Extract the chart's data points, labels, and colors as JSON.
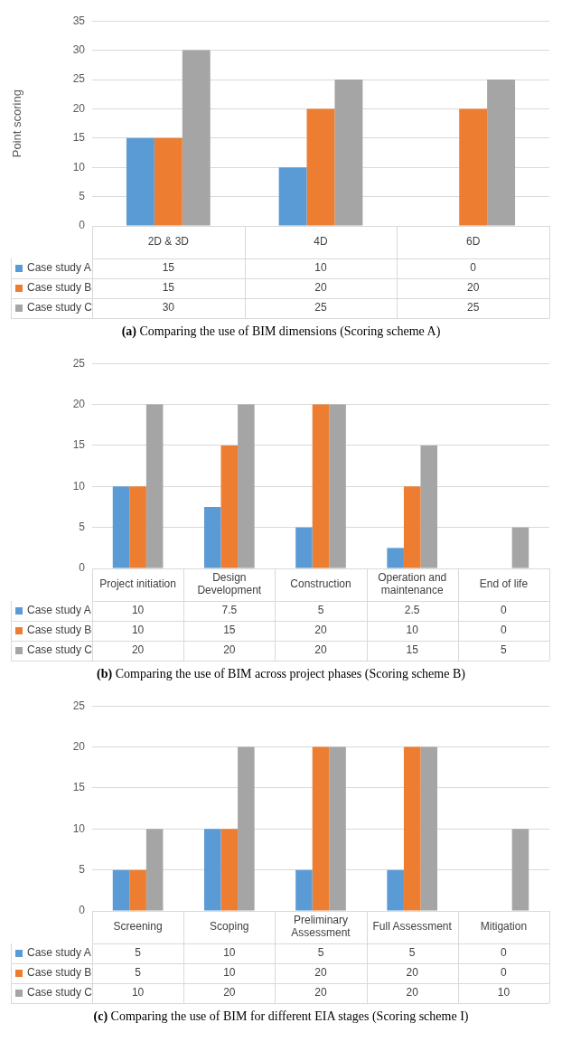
{
  "chart_data": [
    {
      "type": "bar",
      "title": "(a) Comparing the use of BIM dimensions (Scoring scheme A)",
      "ylabel": "Point scoring",
      "categories": [
        "2D & 3D",
        "4D",
        "6D"
      ],
      "series": [
        {
          "name": "Case study A",
          "color": "#5b9bd5",
          "values": [
            15,
            10,
            0
          ]
        },
        {
          "name": "Case study B",
          "color": "#ed7d31",
          "values": [
            15,
            20,
            20
          ]
        },
        {
          "name": "Case study C",
          "color": "#a5a5a5",
          "values": [
            30,
            25,
            25
          ]
        }
      ],
      "ylim": [
        0,
        35
      ],
      "yticks": [
        0,
        5,
        10,
        15,
        20,
        25,
        30,
        35
      ],
      "grid": "y",
      "data_labels": true,
      "legend": "bottom left"
    },
    {
      "type": "bar",
      "title": "(b) Comparing the use of BIM across project phases (Scoring scheme B)",
      "categories": [
        "Project initiation",
        "Design Development",
        "Construction",
        "Operation and maintenance",
        "End of life"
      ],
      "series": [
        {
          "name": "Case study A",
          "color": "#5b9bd5",
          "values": [
            10,
            7.5,
            5,
            2.5,
            0
          ]
        },
        {
          "name": "Case study B",
          "color": "#ed7d31",
          "values": [
            10,
            15,
            20,
            10,
            0
          ]
        },
        {
          "name": "Case study C",
          "color": "#a5a5a5",
          "values": [
            20,
            20,
            20,
            15,
            5
          ]
        }
      ],
      "ylim": [
        0,
        25
      ],
      "yticks": [
        0,
        5,
        10,
        15,
        20,
        25
      ],
      "grid": "y",
      "data_labels": true,
      "legend": "bottom left"
    },
    {
      "type": "bar",
      "title": "(c) Comparing the use of BIM for different EIA stages (Scoring scheme I)",
      "categories": [
        "Screening",
        "Scoping",
        "Preliminary Assessment",
        "Full Assessment",
        "Mitigation"
      ],
      "series": [
        {
          "name": "Case study A",
          "color": "#5b9bd5",
          "values": [
            5,
            10,
            5,
            5,
            0
          ]
        },
        {
          "name": "Case study B",
          "color": "#ed7d31",
          "values": [
            5,
            10,
            20,
            20,
            0
          ]
        },
        {
          "name": "Case study C",
          "color": "#a5a5a5",
          "values": [
            10,
            20,
            20,
            20,
            10
          ]
        }
      ],
      "ylim": [
        0,
        25
      ],
      "yticks": [
        0,
        5,
        10,
        15,
        20,
        25
      ],
      "grid": "y",
      "data_labels": true,
      "legend": "bottom left"
    }
  ]
}
